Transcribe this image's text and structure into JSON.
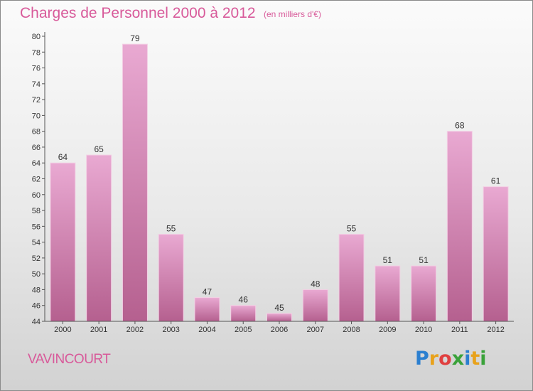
{
  "title": "Charges de Personnel 2000 à 2012",
  "subtitle": "(en milliers d'€)",
  "commune": "VAVINCOURT",
  "logo": {
    "letters": [
      "P",
      "r",
      "o",
      "x",
      "i",
      "t",
      "i"
    ],
    "colors": [
      "#2b7fd0",
      "#e8a21c",
      "#e04040",
      "#3aa23a",
      "#2b7fd0",
      "#e8a21c",
      "#3aa23a"
    ]
  },
  "colors": {
    "bar_top": "#e9a9d2",
    "bar_bottom": "#b5608f",
    "text_accent": "#d85a9a"
  },
  "chart_data": {
    "type": "bar",
    "title": "Charges de Personnel 2000 à 2012",
    "categories": [
      "2000",
      "2001",
      "2002",
      "2003",
      "2004",
      "2005",
      "2006",
      "2007",
      "2008",
      "2009",
      "2010",
      "2011",
      "2012"
    ],
    "values": [
      64,
      65,
      79,
      55,
      47,
      46,
      45,
      48,
      55,
      51,
      51,
      68,
      61
    ],
    "ylim": [
      44,
      80
    ],
    "yticks": [
      44,
      46,
      48,
      50,
      52,
      54,
      56,
      58,
      60,
      62,
      64,
      66,
      68,
      70,
      72,
      74,
      76,
      78,
      80
    ],
    "grid": false,
    "xlabel": "",
    "ylabel": ""
  }
}
